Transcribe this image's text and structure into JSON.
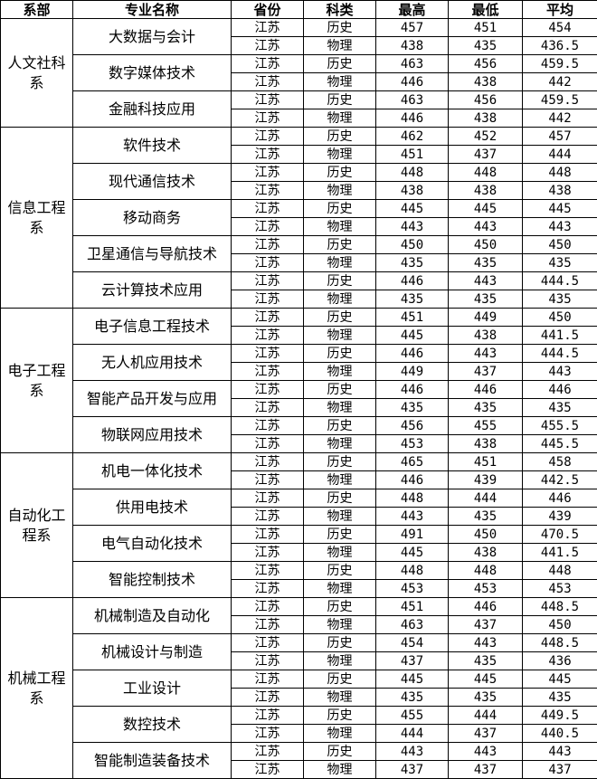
{
  "headers": [
    "系部",
    "专业名称",
    "省份",
    "科类",
    "最高",
    "最低",
    "平均"
  ],
  "departments": [
    {
      "name": "人文社科系",
      "majors": [
        {
          "name": "大数据与会计",
          "rows": [
            [
              "江苏",
              "历史",
              "457",
              "451",
              "454"
            ],
            [
              "江苏",
              "物理",
              "438",
              "435",
              "436.5"
            ]
          ]
        },
        {
          "name": "数字媒体技术",
          "rows": [
            [
              "江苏",
              "历史",
              "463",
              "456",
              "459.5"
            ],
            [
              "江苏",
              "物理",
              "446",
              "438",
              "442"
            ]
          ]
        },
        {
          "name": "金融科技应用",
          "rows": [
            [
              "江苏",
              "历史",
              "463",
              "456",
              "459.5"
            ],
            [
              "江苏",
              "物理",
              "446",
              "438",
              "442"
            ]
          ]
        }
      ]
    },
    {
      "name": "信息工程系",
      "majors": [
        {
          "name": "软件技术",
          "rows": [
            [
              "江苏",
              "历史",
              "462",
              "452",
              "457"
            ],
            [
              "江苏",
              "物理",
              "451",
              "437",
              "444"
            ]
          ]
        },
        {
          "name": "现代通信技术",
          "rows": [
            [
              "江苏",
              "历史",
              "448",
              "448",
              "448"
            ],
            [
              "江苏",
              "物理",
              "438",
              "438",
              "438"
            ]
          ]
        },
        {
          "name": "移动商务",
          "rows": [
            [
              "江苏",
              "历史",
              "445",
              "445",
              "445"
            ],
            [
              "江苏",
              "物理",
              "443",
              "443",
              "443"
            ]
          ]
        },
        {
          "name": "卫星通信与导航技术",
          "rows": [
            [
              "江苏",
              "历史",
              "450",
              "450",
              "450"
            ],
            [
              "江苏",
              "物理",
              "435",
              "435",
              "435"
            ]
          ]
        },
        {
          "name": "云计算技术应用",
          "rows": [
            [
              "江苏",
              "历史",
              "446",
              "443",
              "444.5"
            ],
            [
              "江苏",
              "物理",
              "435",
              "435",
              "435"
            ]
          ]
        }
      ]
    },
    {
      "name": "电子工程系",
      "majors": [
        {
          "name": "电子信息工程技术",
          "rows": [
            [
              "江苏",
              "历史",
              "451",
              "449",
              "450"
            ],
            [
              "江苏",
              "物理",
              "445",
              "438",
              "441.5"
            ]
          ]
        },
        {
          "name": "无人机应用技术",
          "rows": [
            [
              "江苏",
              "历史",
              "446",
              "443",
              "444.5"
            ],
            [
              "江苏",
              "物理",
              "449",
              "437",
              "443"
            ]
          ]
        },
        {
          "name": "智能产品开发与应用",
          "rows": [
            [
              "江苏",
              "历史",
              "446",
              "446",
              "446"
            ],
            [
              "江苏",
              "物理",
              "435",
              "435",
              "435"
            ]
          ]
        },
        {
          "name": "物联网应用技术",
          "rows": [
            [
              "江苏",
              "历史",
              "456",
              "455",
              "455.5"
            ],
            [
              "江苏",
              "物理",
              "453",
              "438",
              "445.5"
            ]
          ]
        }
      ]
    },
    {
      "name": "自动化工程系",
      "majors": [
        {
          "name": "机电一体化技术",
          "rows": [
            [
              "江苏",
              "历史",
              "465",
              "451",
              "458"
            ],
            [
              "江苏",
              "物理",
              "446",
              "439",
              "442.5"
            ]
          ]
        },
        {
          "name": "供用电技术",
          "rows": [
            [
              "江苏",
              "历史",
              "448",
              "444",
              "446"
            ],
            [
              "江苏",
              "物理",
              "443",
              "435",
              "439"
            ]
          ]
        },
        {
          "name": "电气自动化技术",
          "rows": [
            [
              "江苏",
              "历史",
              "491",
              "450",
              "470.5"
            ],
            [
              "江苏",
              "物理",
              "445",
              "438",
              "441.5"
            ]
          ]
        },
        {
          "name": "智能控制技术",
          "rows": [
            [
              "江苏",
              "历史",
              "448",
              "448",
              "448"
            ],
            [
              "江苏",
              "物理",
              "453",
              "453",
              "453"
            ]
          ]
        }
      ]
    },
    {
      "name": "机械工程系",
      "majors": [
        {
          "name": "机械制造及自动化",
          "rows": [
            [
              "江苏",
              "历史",
              "451",
              "446",
              "448.5"
            ],
            [
              "江苏",
              "物理",
              "463",
              "437",
              "450"
            ]
          ]
        },
        {
          "name": "机械设计与制造",
          "rows": [
            [
              "江苏",
              "历史",
              "454",
              "443",
              "448.5"
            ],
            [
              "江苏",
              "物理",
              "437",
              "435",
              "436"
            ]
          ]
        },
        {
          "name": "工业设计",
          "rows": [
            [
              "江苏",
              "历史",
              "445",
              "445",
              "445"
            ],
            [
              "江苏",
              "物理",
              "435",
              "435",
              "435"
            ]
          ]
        },
        {
          "name": "数控技术",
          "rows": [
            [
              "江苏",
              "历史",
              "455",
              "444",
              "449.5"
            ],
            [
              "江苏",
              "物理",
              "444",
              "437",
              "440.5"
            ]
          ]
        },
        {
          "name": "智能制造装备技术",
          "rows": [
            [
              "江苏",
              "历史",
              "443",
              "443",
              "443"
            ],
            [
              "江苏",
              "物理",
              "437",
              "437",
              "437"
            ]
          ]
        }
      ]
    }
  ]
}
